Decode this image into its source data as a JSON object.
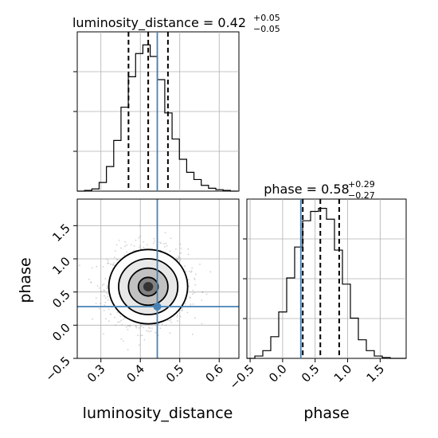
{
  "chart_data": [
    {
      "type": "histogram",
      "panel": "luminosity_distance marginal",
      "title": {
        "prefix": "luminosity_distance = 0.42",
        "sup": "+0.05",
        "sub": "−0.05"
      },
      "xlim": [
        0.24,
        0.65
      ],
      "bin_edges": [
        0.24,
        0.2585,
        0.277,
        0.2955,
        0.314,
        0.3325,
        0.351,
        0.3695,
        0.388,
        0.4065,
        0.425,
        0.4435,
        0.462,
        0.4805,
        0.499,
        0.5175,
        0.536,
        0.5545,
        0.573,
        0.5915,
        0.61,
        0.6285,
        0.647
      ],
      "counts": [
        0,
        0.5,
        1.5,
        6,
        17,
        35,
        58,
        79,
        95,
        101,
        93,
        77,
        54,
        36,
        22,
        13,
        8,
        4,
        2,
        1,
        0.5,
        0
      ],
      "ymax": 110,
      "quantiles": [
        0.37,
        0.42,
        0.47
      ],
      "truth": 0.443
    },
    {
      "type": "histogram",
      "panel": "phase marginal",
      "title": {
        "prefix": "phase = 0.58",
        "sup": "+0.29",
        "sub": "−0.27"
      },
      "xlim": [
        -0.55,
        1.9
      ],
      "xticks": [
        "−0.5",
        "0.0",
        "0.5",
        "1.0",
        "1.5"
      ],
      "xtick_values": [
        -0.5,
        0.0,
        0.5,
        1.0,
        1.5
      ],
      "xlabel": "phase",
      "bin_edges": [
        -0.55,
        -0.4275,
        -0.305,
        -0.1825,
        -0.06,
        0.0625,
        0.185,
        0.3075,
        0.43,
        0.5525,
        0.675,
        0.7975,
        0.92,
        1.0425,
        1.165,
        1.2875,
        1.41,
        1.5325,
        1.655,
        1.7775,
        1.9
      ],
      "counts": [
        0,
        1.5,
        5,
        14,
        30,
        52,
        72,
        89,
        95,
        97,
        90,
        70,
        48,
        26,
        12,
        5,
        1.5,
        0.5,
        0,
        0
      ],
      "ymax": 103,
      "quantiles": [
        0.31,
        0.58,
        0.87
      ],
      "truth": 0.28
    },
    {
      "type": "scatter",
      "panel": "2D joint",
      "xlabel": "luminosity_distance",
      "ylabel": "phase",
      "xlim": [
        0.24,
        0.65
      ],
      "ylim": [
        -0.5,
        1.9
      ],
      "xticks": [
        "0.3",
        "0.4",
        "0.5",
        "0.6"
      ],
      "xtick_values": [
        0.3,
        0.4,
        0.5,
        0.6
      ],
      "yticks": [
        "−0.5",
        "0.0",
        "0.5",
        "1.0",
        "1.5"
      ],
      "ytick_values": [
        -0.5,
        0.0,
        0.5,
        1.0,
        1.5
      ],
      "mean": [
        0.42,
        0.58
      ],
      "std": [
        0.05,
        0.28
      ],
      "contour_levels_sigma": [
        0.5,
        1.0,
        1.5,
        2.0
      ],
      "truth": [
        0.443,
        0.28
      ]
    }
  ],
  "colors": {
    "truth": "#4682b4",
    "hist": "#000000",
    "scatter": "#9a9a9a",
    "grid": "#b0b0b0"
  }
}
